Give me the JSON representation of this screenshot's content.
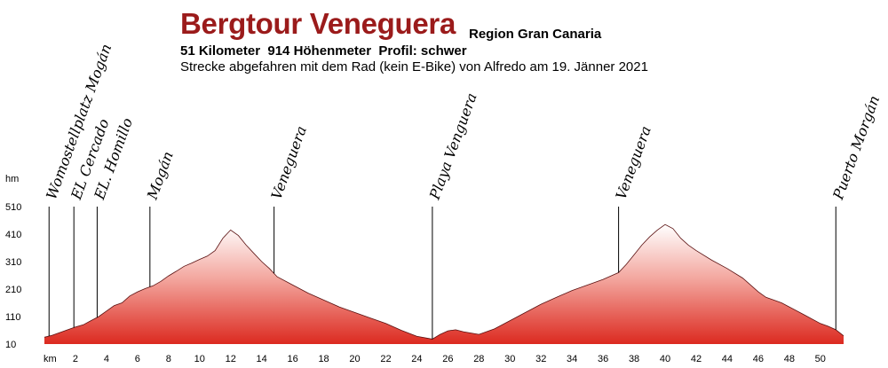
{
  "header": {
    "title": "Bergtour Veneguera",
    "region": "Region Gran Canaria",
    "stats": "51 Kilometer  914 Höhenmeter  Profil: schwer",
    "description": "Strecke abgefahren mit dem Rad (kein E-Bike) von Alfredo am 19. Jänner 2021"
  },
  "colors": {
    "title": "#9b1b1b",
    "fill_bottom": "#dc2a20",
    "fill_top": "#ffffff",
    "outline": "#5a1010"
  },
  "chart_data": {
    "type": "area",
    "xlabel": "km",
    "ylabel": "hm",
    "xlim": [
      0,
      51.5
    ],
    "ylim": [
      10,
      510
    ],
    "x_ticks": [
      2,
      4,
      6,
      8,
      10,
      12,
      14,
      16,
      18,
      20,
      22,
      24,
      26,
      28,
      30,
      32,
      34,
      36,
      38,
      40,
      42,
      44,
      46,
      48,
      50
    ],
    "y_ticks": [
      10,
      110,
      210,
      310,
      410,
      510
    ],
    "grid": false,
    "series": [
      {
        "x": [
          0,
          0.5,
          1,
          1.5,
          2,
          2.5,
          3,
          3.5,
          4,
          4.5,
          5,
          5.5,
          6,
          6.5,
          7,
          7.5,
          8,
          8.5,
          9,
          9.5,
          10,
          10.5,
          11,
          11.5,
          12,
          12.5,
          13,
          13.5,
          14,
          14.5,
          15,
          16,
          17,
          18,
          19,
          20,
          21,
          22,
          23,
          24,
          25,
          25.5,
          26,
          26.5,
          27,
          27.5,
          28,
          29,
          30,
          31,
          32,
          33,
          34,
          35,
          36,
          37,
          37.5,
          38,
          38.5,
          39,
          39.5,
          40,
          40.5,
          41,
          41.5,
          42,
          43,
          44,
          45,
          46,
          46.5,
          47,
          47.5,
          48,
          49,
          50,
          50.5,
          51,
          51.5
        ],
        "values": [
          35,
          42,
          52,
          62,
          72,
          80,
          95,
          110,
          130,
          150,
          160,
          185,
          200,
          212,
          222,
          238,
          258,
          275,
          293,
          305,
          318,
          330,
          350,
          395,
          425,
          405,
          370,
          340,
          310,
          285,
          255,
          225,
          195,
          170,
          145,
          125,
          105,
          85,
          60,
          38,
          28,
          45,
          58,
          62,
          55,
          50,
          45,
          65,
          95,
          125,
          155,
          180,
          205,
          225,
          245,
          270,
          300,
          335,
          370,
          400,
          425,
          445,
          430,
          395,
          370,
          350,
          315,
          285,
          250,
          200,
          180,
          170,
          160,
          145,
          115,
          85,
          75,
          62,
          40
        ]
      }
    ],
    "waypoints": [
      {
        "km": 0.3,
        "name": "Womostellplatz Mogán"
      },
      {
        "km": 1.9,
        "name": "EL Cercado"
      },
      {
        "km": 3.4,
        "name": "EL. Homillo"
      },
      {
        "km": 6.8,
        "name": "Mogán"
      },
      {
        "km": 14.8,
        "name": "Veneguera"
      },
      {
        "km": 25.0,
        "name": "Playa Venguera"
      },
      {
        "km": 37.0,
        "name": "Veneguera"
      },
      {
        "km": 51.0,
        "name": "Puerto Morgán"
      }
    ]
  }
}
